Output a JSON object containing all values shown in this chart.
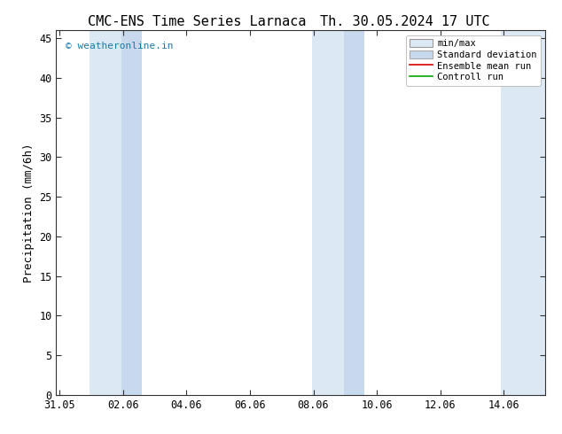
{
  "title_left": "CMC-ENS Time Series Larnaca",
  "title_right": "Th. 30.05.2024 17 UTC",
  "ylabel": "Precipitation (mm/6h)",
  "ylim": [
    0,
    46
  ],
  "yticks": [
    0,
    5,
    10,
    15,
    20,
    25,
    30,
    35,
    40,
    45
  ],
  "xtick_labels": [
    "31.05",
    "02.06",
    "04.06",
    "06.06",
    "08.06",
    "10.06",
    "12.06",
    "14.06"
  ],
  "xtick_positions": [
    0,
    2,
    4,
    6,
    8,
    10,
    12,
    14
  ],
  "xlim": [
    -0.1,
    15.3
  ],
  "copyright_text": "© weatheronline.in",
  "copyright_color": "#1a7aaa",
  "background_color": "#ffffff",
  "plot_bg_color": "#ffffff",
  "band_light": "#dce9f5",
  "band_dark": "#c8d9ee",
  "legend_items": [
    "min/max",
    "Standard deviation",
    "Ensemble mean run",
    "Controll run"
  ],
  "legend_line_colors": [
    "#999999",
    "#bbbbbb",
    "#dd0000",
    "#00aa00"
  ],
  "shade_bands_light": [
    {
      "start": 0.95,
      "end": 2.6
    },
    {
      "start": 7.95,
      "end": 9.6
    },
    {
      "start": 13.9,
      "end": 15.3
    }
  ],
  "shade_bands_dark": [
    {
      "start": 1.95,
      "end": 2.6
    },
    {
      "start": 8.95,
      "end": 9.6
    }
  ],
  "title_fontsize": 11,
  "axis_fontsize": 9,
  "tick_fontsize": 8.5,
  "legend_fontsize": 7.5
}
